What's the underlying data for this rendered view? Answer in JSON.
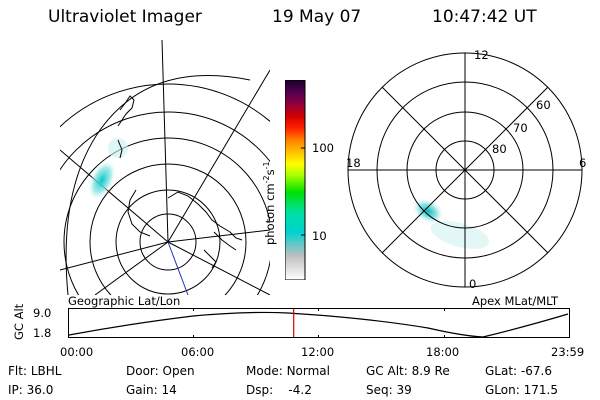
{
  "header": {
    "instrument": "Ultraviolet Imager",
    "date": "19 May 07",
    "time": "10:47:42 UT"
  },
  "colorbar": {
    "label_html": "photon cm",
    "label_exp1": "-2",
    "label_unit2": "s",
    "label_exp2": "-1",
    "ticks": [
      "100",
      "10"
    ],
    "colors": [
      "#ffffff",
      "#bfbfbf",
      "#00d2d2",
      "#00e0a0",
      "#00e000",
      "#a0ff00",
      "#ffff00",
      "#ffc000",
      "#ff8000",
      "#ff2000",
      "#d00000",
      "#900040",
      "#500050",
      "#1a0028"
    ]
  },
  "left_panel": {
    "caption": "Geographic Lat/Lon"
  },
  "right_panel": {
    "caption": "Apex MLat/MLT",
    "mlt_labels": [
      "12",
      "18",
      "6",
      "0"
    ],
    "mlat_labels": [
      "60",
      "70",
      "80"
    ]
  },
  "altitude_plot": {
    "ylabel": "GC Alt",
    "yticks": [
      "9.0",
      "1.8"
    ],
    "xticks": [
      "00:00",
      "06:00",
      "12:00",
      "18:00",
      "23:59"
    ],
    "current_time_fraction": 0.4494,
    "marker_color": "#d00000"
  },
  "info": {
    "row1": [
      {
        "label": "Flt:",
        "value": "LBHL"
      },
      {
        "label": "Door:",
        "value": "Open"
      },
      {
        "label": "Mode:",
        "value": "Normal"
      },
      {
        "label": "GC Alt:",
        "value": "8.9 Re"
      },
      {
        "label": "GLat:",
        "value": "-67.6"
      }
    ],
    "row2": [
      {
        "label": "IP:",
        "value": "36.0"
      },
      {
        "label": "Gain:",
        "value": "14"
      },
      {
        "label": "Dsp:",
        "value": "-4.2"
      },
      {
        "label": "Seq:",
        "value": "39"
      },
      {
        "label": "GLon:",
        "value": "171.5"
      }
    ]
  }
}
